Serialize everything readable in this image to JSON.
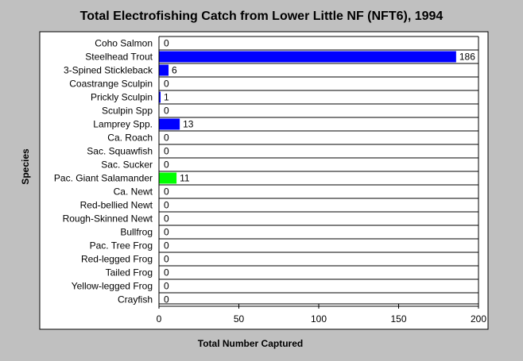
{
  "chart_data": {
    "type": "bar",
    "orientation": "horizontal",
    "title": "Total Electrofishing Catch from Lower Little NF (NFT6), 1994",
    "xlabel": "Total Number Captured",
    "ylabel": "Species",
    "xlim": [
      0,
      200
    ],
    "xticks": [
      0,
      50,
      100,
      150,
      200
    ],
    "grid": "horizontal row dividers",
    "categories": [
      "Coho Salmon",
      "Steelhead Trout",
      "3-Spined Stickleback",
      "Coastrange Sculpin",
      "Prickly Sculpin",
      "Sculpin Spp",
      "Lamprey Spp.",
      "Ca. Roach",
      "Sac. Squawfish",
      "Sac. Sucker",
      "Pac. Giant Salamander",
      "Ca. Newt",
      "Red-bellied Newt",
      "Rough-Skinned Newt",
      "Bullfrog",
      "Pac. Tree Frog",
      "Red-legged Frog",
      "Tailed Frog",
      "Yellow-legged Frog",
      "Crayfish"
    ],
    "values": [
      0,
      186,
      6,
      0,
      1,
      0,
      13,
      0,
      0,
      0,
      11,
      0,
      0,
      0,
      0,
      0,
      0,
      0,
      0,
      0
    ],
    "bar_colors": [
      "#0000ff",
      "#0000ff",
      "#0000ff",
      "#0000ff",
      "#0000ff",
      "#0000ff",
      "#0000ff",
      "#0000ff",
      "#0000ff",
      "#0000ff",
      "#00ff00",
      "#0000ff",
      "#0000ff",
      "#0000ff",
      "#0000ff",
      "#0000ff",
      "#0000ff",
      "#0000ff",
      "#0000ff",
      "#0000ff"
    ],
    "plot_background": "#ffffff",
    "page_background": "#c0c0c0"
  }
}
